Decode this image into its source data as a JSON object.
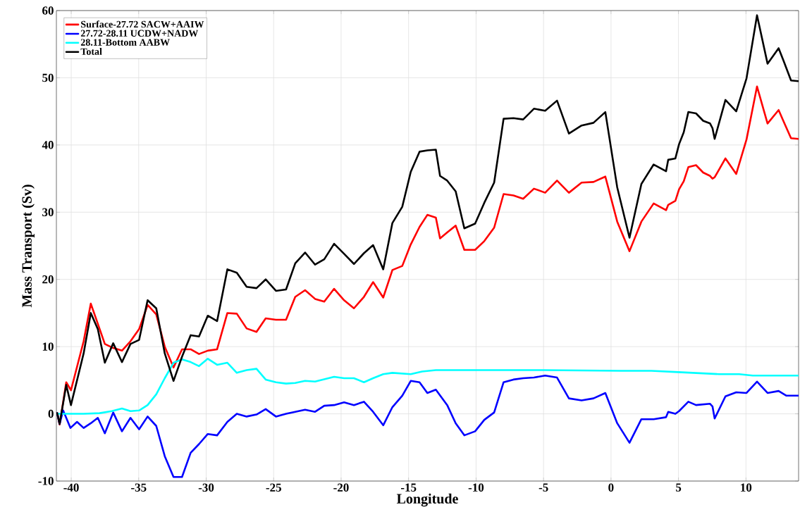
{
  "chart_data": {
    "type": "line",
    "xlabel": "Longitude",
    "ylabel": "Mass Transport (Sv)",
    "xlim": [
      -41.1,
      13.9
    ],
    "ylim": [
      -10,
      60
    ],
    "xticks": [
      -40,
      -35,
      -30,
      -25,
      -20,
      -15,
      -10,
      -5,
      0,
      5,
      10
    ],
    "yticks": [
      -10,
      0,
      10,
      20,
      30,
      40,
      50,
      60
    ],
    "grid": true,
    "legend": "top left",
    "marker": "none",
    "line_style": "solid",
    "series": [
      {
        "name": "Surface-27.72 SACW+AAIW",
        "color": "#ff0000",
        "x": [
          -41.04,
          -40.86,
          -40.37,
          -40.02,
          -39.08,
          -38.55,
          -38.03,
          -37.51,
          -36.89,
          -36.24,
          -35.61,
          -34.97,
          -34.34,
          -33.7,
          -33.07,
          -32.42,
          -31.79,
          -31.15,
          -30.53,
          -29.88,
          -29.19,
          -28.43,
          -27.73,
          -27.0,
          -26.27,
          -25.59,
          -24.83,
          -24.08,
          -23.4,
          -22.67,
          -21.93,
          -21.25,
          -20.52,
          -19.78,
          -19.05,
          -18.31,
          -17.63,
          -16.88,
          -16.2,
          -15.47,
          -14.84,
          -14.19,
          -13.61,
          -12.98,
          -12.67,
          -12.14,
          -11.51,
          -10.87,
          -10.07,
          -9.39,
          -8.66,
          -7.96,
          -7.23,
          -6.51,
          -5.71,
          -4.88,
          -4.0,
          -3.12,
          -2.18,
          -1.3,
          -0.42,
          0.46,
          1.37,
          2.25,
          3.16,
          4.08,
          4.24,
          4.77,
          5.04,
          5.39,
          5.73,
          6.3,
          6.83,
          7.34,
          7.52,
          7.68,
          8.48,
          9.28,
          10.04,
          10.82,
          11.6,
          12.42,
          12.79,
          13.34,
          13.9
        ],
        "values": [
          0.1,
          -1.6,
          4.7,
          3.5,
          10.8,
          16.4,
          13.4,
          10.4,
          9.8,
          9.4,
          10.8,
          12.6,
          16.2,
          14.8,
          10.0,
          6.9,
          9.6,
          9.6,
          8.9,
          9.4,
          9.6,
          15.0,
          14.9,
          12.7,
          12.2,
          14.2,
          14.0,
          14.0,
          17.4,
          18.4,
          17.1,
          16.7,
          18.6,
          16.9,
          15.7,
          17.4,
          19.6,
          17.3,
          21.4,
          22.0,
          25.2,
          27.8,
          29.6,
          29.2,
          26.1,
          27.0,
          28.0,
          24.4,
          24.4,
          25.7,
          27.7,
          32.7,
          32.5,
          32.0,
          33.5,
          32.9,
          34.7,
          32.9,
          34.4,
          34.5,
          35.3,
          28.6,
          24.2,
          28.6,
          31.3,
          30.3,
          31.1,
          31.7,
          33.4,
          34.6,
          36.7,
          37.0,
          35.9,
          35.4,
          35.0,
          35.2,
          38.0,
          35.7,
          40.8,
          48.7,
          43.2,
          45.2,
          43.5,
          41.0,
          40.9
        ]
      },
      {
        "name": "27.72-28.11 UCDW+NADW",
        "color": "#0000ff",
        "x": [
          -41.04,
          -40.86,
          -40.6,
          -40.06,
          -39.57,
          -39.08,
          -38.55,
          -38.03,
          -37.51,
          -36.89,
          -36.24,
          -35.61,
          -34.97,
          -34.34,
          -33.7,
          -33.07,
          -32.42,
          -31.79,
          -31.15,
          -30.53,
          -29.88,
          -29.19,
          -28.43,
          -27.73,
          -27.0,
          -26.27,
          -25.59,
          -24.83,
          -24.08,
          -23.4,
          -22.67,
          -21.93,
          -21.25,
          -20.52,
          -19.78,
          -19.05,
          -18.31,
          -17.63,
          -16.88,
          -16.2,
          -15.47,
          -14.84,
          -14.19,
          -13.61,
          -12.98,
          -12.14,
          -11.51,
          -10.87,
          -10.07,
          -9.39,
          -8.66,
          -7.96,
          -7.23,
          -6.51,
          -5.71,
          -4.88,
          -4.0,
          -3.12,
          -2.18,
          -1.3,
          -0.42,
          0.46,
          1.37,
          2.25,
          3.16,
          4.08,
          4.24,
          4.77,
          5.04,
          5.73,
          6.3,
          7.34,
          7.52,
          7.68,
          8.48,
          9.28,
          10.04,
          10.82,
          11.6,
          12.42,
          13.0,
          13.9
        ],
        "values": [
          0.1,
          -1.5,
          0.5,
          -2.1,
          -1.2,
          -2.1,
          -1.4,
          -0.6,
          -2.9,
          0.2,
          -2.6,
          -0.6,
          -2.3,
          -0.4,
          -1.8,
          -6.3,
          -9.4,
          -9.4,
          -5.8,
          -4.5,
          -3.0,
          -3.2,
          -1.2,
          0,
          -0.4,
          -0.1,
          0.7,
          -0.4,
          0,
          0.3,
          0.6,
          0.3,
          1.2,
          1.3,
          1.7,
          1.3,
          1.8,
          0.3,
          -1.7,
          1.0,
          2.7,
          4.9,
          4.7,
          3.1,
          3.6,
          1.3,
          -1.4,
          -3.2,
          -2.6,
          -0.9,
          0.2,
          4.7,
          5.1,
          5.3,
          5.4,
          5.7,
          5.4,
          2.3,
          2.0,
          2.3,
          3.1,
          -1.4,
          -4.3,
          -0.8,
          -0.8,
          -0.5,
          0.3,
          0,
          0.4,
          1.8,
          1.3,
          1.5,
          1.1,
          -0.7,
          2.6,
          3.2,
          3.1,
          4.8,
          3.1,
          3.4,
          2.7,
          2.7
        ]
      },
      {
        "name": "28.11-Bottom AABW",
        "color": "#00ffff",
        "x": [
          -41.04,
          -40.0,
          -39.08,
          -37.9,
          -37.0,
          -36.24,
          -35.61,
          -34.97,
          -34.34,
          -33.7,
          -33.07,
          -32.42,
          -31.79,
          -31.15,
          -30.53,
          -29.88,
          -29.19,
          -28.43,
          -27.73,
          -27.0,
          -26.27,
          -25.59,
          -24.83,
          -24.08,
          -23.4,
          -22.67,
          -21.93,
          -20.52,
          -19.78,
          -19.05,
          -18.31,
          -17.63,
          -16.88,
          -16.2,
          -14.84,
          -14.0,
          -12.98,
          -5.0,
          0.69,
          3.0,
          5.0,
          8.0,
          9.5,
          10.5,
          13.9
        ],
        "values": [
          0,
          0,
          0,
          0.1,
          0.4,
          0.8,
          0.4,
          0.5,
          1.3,
          2.9,
          5.3,
          7.6,
          8.1,
          7.7,
          7.1,
          8.2,
          7.3,
          7.6,
          6.1,
          6.5,
          6.7,
          5.1,
          4.7,
          4.5,
          4.6,
          4.9,
          4.8,
          5.5,
          5.3,
          5.3,
          4.7,
          5.3,
          5.9,
          6.1,
          5.9,
          6.3,
          6.5,
          6.5,
          6.4,
          6.4,
          6.2,
          5.9,
          5.9,
          5.7,
          5.7
        ]
      },
      {
        "name": "Total",
        "color": "#000000",
        "x": [
          -41.04,
          -40.86,
          -40.37,
          -40.02,
          -39.08,
          -38.55,
          -38.03,
          -37.51,
          -36.89,
          -36.24,
          -35.61,
          -34.97,
          -34.34,
          -33.7,
          -33.07,
          -32.42,
          -31.79,
          -31.15,
          -30.53,
          -29.88,
          -29.19,
          -28.43,
          -27.73,
          -27.0,
          -26.27,
          -25.59,
          -24.83,
          -24.08,
          -23.4,
          -22.67,
          -21.93,
          -21.25,
          -20.52,
          -19.78,
          -19.05,
          -18.31,
          -17.63,
          -16.88,
          -16.2,
          -15.47,
          -14.84,
          -14.19,
          -13.61,
          -12.98,
          -12.67,
          -12.14,
          -11.51,
          -10.87,
          -10.07,
          -9.39,
          -8.66,
          -7.96,
          -7.23,
          -6.51,
          -5.71,
          -4.88,
          -4.0,
          -3.12,
          -2.18,
          -1.3,
          -0.42,
          0.46,
          1.37,
          2.25,
          3.16,
          4.08,
          4.24,
          4.77,
          5.04,
          5.39,
          5.73,
          6.3,
          6.83,
          7.34,
          7.52,
          7.68,
          8.48,
          9.28,
          10.04,
          10.82,
          11.6,
          12.42,
          12.79,
          13.34,
          13.9
        ],
        "values": [
          0.1,
          -1.5,
          4.3,
          1.3,
          9.0,
          15.0,
          12.6,
          7.6,
          10.5,
          7.7,
          10.4,
          11.0,
          16.9,
          15.7,
          9.0,
          4.9,
          8.5,
          11.7,
          11.5,
          14.6,
          13.8,
          21.5,
          21.0,
          18.9,
          18.7,
          20.0,
          18.3,
          18.5,
          22.4,
          24.0,
          22.2,
          23.0,
          25.3,
          23.8,
          22.3,
          23.9,
          25.1,
          21.5,
          28.4,
          30.8,
          36.0,
          39.0,
          39.2,
          39.3,
          35.4,
          34.7,
          33.1,
          27.6,
          28.3,
          31.4,
          34.4,
          43.9,
          44.0,
          43.8,
          45.4,
          45.1,
          46.6,
          41.7,
          42.9,
          43.3,
          44.9,
          33.7,
          26.2,
          34.2,
          37.1,
          36.1,
          37.8,
          38.0,
          40.1,
          41.9,
          44.9,
          44.7,
          43.6,
          43.2,
          42.5,
          40.9,
          46.7,
          45.0,
          49.9,
          59.3,
          52.1,
          54.4,
          52.5,
          49.6,
          49.5
        ]
      }
    ]
  }
}
